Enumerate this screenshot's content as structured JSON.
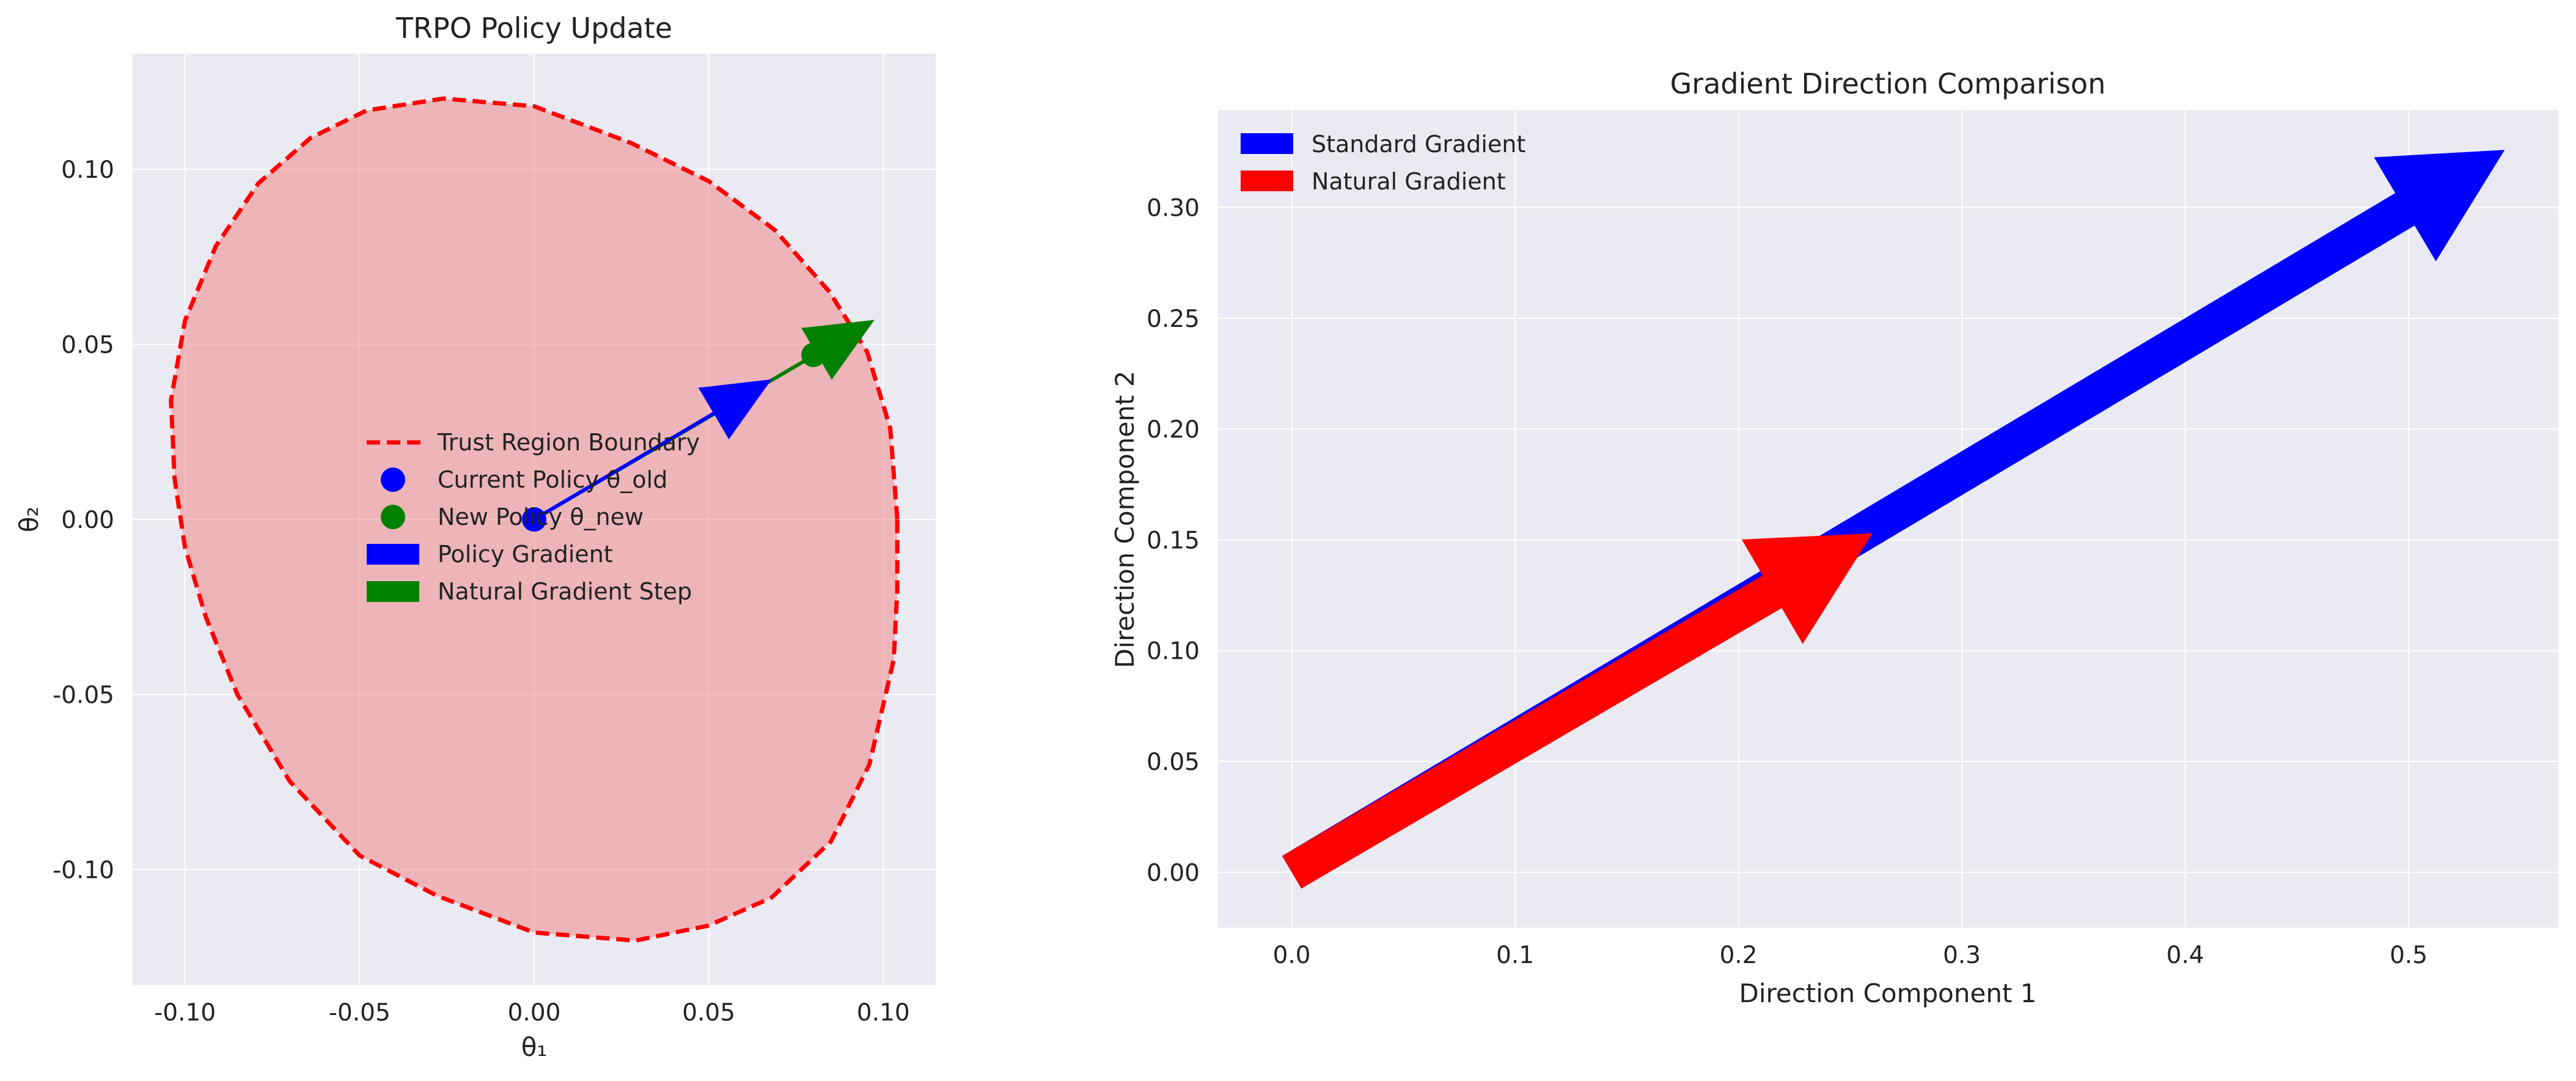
{
  "colors": {
    "axes_bg": "#EAEAF2",
    "grid": "#FFFFFF",
    "trust_region": "#FF0000",
    "trust_region_fill": "#F08080",
    "current_policy": "#0000FF",
    "new_policy": "#008000",
    "policy_gradient": "#0000FF",
    "natural_gradient_step": "#008000",
    "standard_gradient": "#0000FF",
    "natural_gradient": "#FF0000"
  },
  "chart_data": [
    {
      "type": "scatter",
      "title": "TRPO Policy Update",
      "xlabel": "θ₁",
      "ylabel": "θ₂",
      "xlim": [
        -0.115,
        0.115
      ],
      "ylim": [
        -0.133,
        0.133
      ],
      "xticks": [
        -0.1,
        -0.05,
        0.0,
        0.05,
        0.1
      ],
      "xtick_labels": [
        "-0.10",
        "-0.05",
        "0.00",
        "0.05",
        "0.10"
      ],
      "yticks": [
        -0.1,
        -0.05,
        0.0,
        0.05,
        0.1
      ],
      "ytick_labels": [
        "-0.10",
        "-0.05",
        "0.00",
        "0.05",
        "0.10"
      ],
      "grid": true,
      "legend_position": "center",
      "trust_region": {
        "label": "Trust Region Boundary",
        "points": [
          [
            0.104,
            0.0
          ],
          [
            0.102,
            0.026
          ],
          [
            0.0954,
            0.0478
          ],
          [
            0.0845,
            0.0651
          ],
          [
            0.0689,
            0.0827
          ],
          [
            0.05,
            0.0966
          ],
          [
            0.0278,
            0.1075
          ],
          [
            0.0,
            0.118
          ],
          [
            -0.026,
            0.1202
          ],
          [
            -0.048,
            0.1168
          ],
          [
            -0.064,
            0.109
          ],
          [
            -0.079,
            0.096
          ],
          [
            -0.0912,
            0.078
          ],
          [
            -0.1,
            0.0568
          ],
          [
            -0.104,
            0.034
          ],
          [
            -0.103,
            0.0117
          ],
          [
            -0.1,
            -0.008
          ],
          [
            -0.094,
            -0.028
          ],
          [
            -0.085,
            -0.05
          ],
          [
            -0.07,
            -0.0748
          ],
          [
            -0.05,
            -0.096
          ],
          [
            -0.0278,
            -0.1075
          ],
          [
            0.0,
            -0.118
          ],
          [
            0.029,
            -0.1203
          ],
          [
            0.05,
            -0.116
          ],
          [
            0.068,
            -0.108
          ],
          [
            0.085,
            -0.092
          ],
          [
            0.096,
            -0.07
          ],
          [
            0.103,
            -0.04
          ],
          [
            0.104,
            -0.02
          ],
          [
            0.104,
            0.0
          ]
        ]
      },
      "current_policy": {
        "label": "Current Policy θ_old",
        "x": 0.0,
        "y": 0.0
      },
      "new_policy": {
        "label": "New Policy θ_new",
        "x": 0.08,
        "y": 0.047
      },
      "policy_gradient": {
        "label": "Policy Gradient",
        "x0": 0.0,
        "y0": 0.0,
        "dx": 0.068,
        "dy": 0.04
      },
      "natural_gradient_step": {
        "label": "Natural Gradient Step",
        "x0": 0.0,
        "y0": 0.0,
        "dx": 0.0975,
        "dy": 0.057
      }
    },
    {
      "type": "quiver",
      "title": "Gradient Direction Comparison",
      "xlabel": "Direction Component 1",
      "ylabel": "Direction Component 2",
      "xlim": [
        -0.033,
        0.567
      ],
      "ylim": [
        -0.025,
        0.344
      ],
      "xticks": [
        0.0,
        0.1,
        0.2,
        0.3,
        0.4,
        0.5
      ],
      "xtick_labels": [
        "0.0",
        "0.1",
        "0.2",
        "0.3",
        "0.4",
        "0.5"
      ],
      "yticks": [
        0.0,
        0.05,
        0.1,
        0.15,
        0.2,
        0.25,
        0.3
      ],
      "ytick_labels": [
        "0.00",
        "0.05",
        "0.10",
        "0.15",
        "0.20",
        "0.25",
        "0.30"
      ],
      "grid": true,
      "legend_position": "upper left",
      "series": [
        {
          "name": "Standard Gradient",
          "x0": 0.0,
          "y0": 0.0,
          "dx": 0.543,
          "dy": 0.326
        },
        {
          "name": "Natural Gradient",
          "x0": 0.0,
          "y0": 0.0,
          "dx": 0.26,
          "dy": 0.153
        }
      ]
    }
  ]
}
